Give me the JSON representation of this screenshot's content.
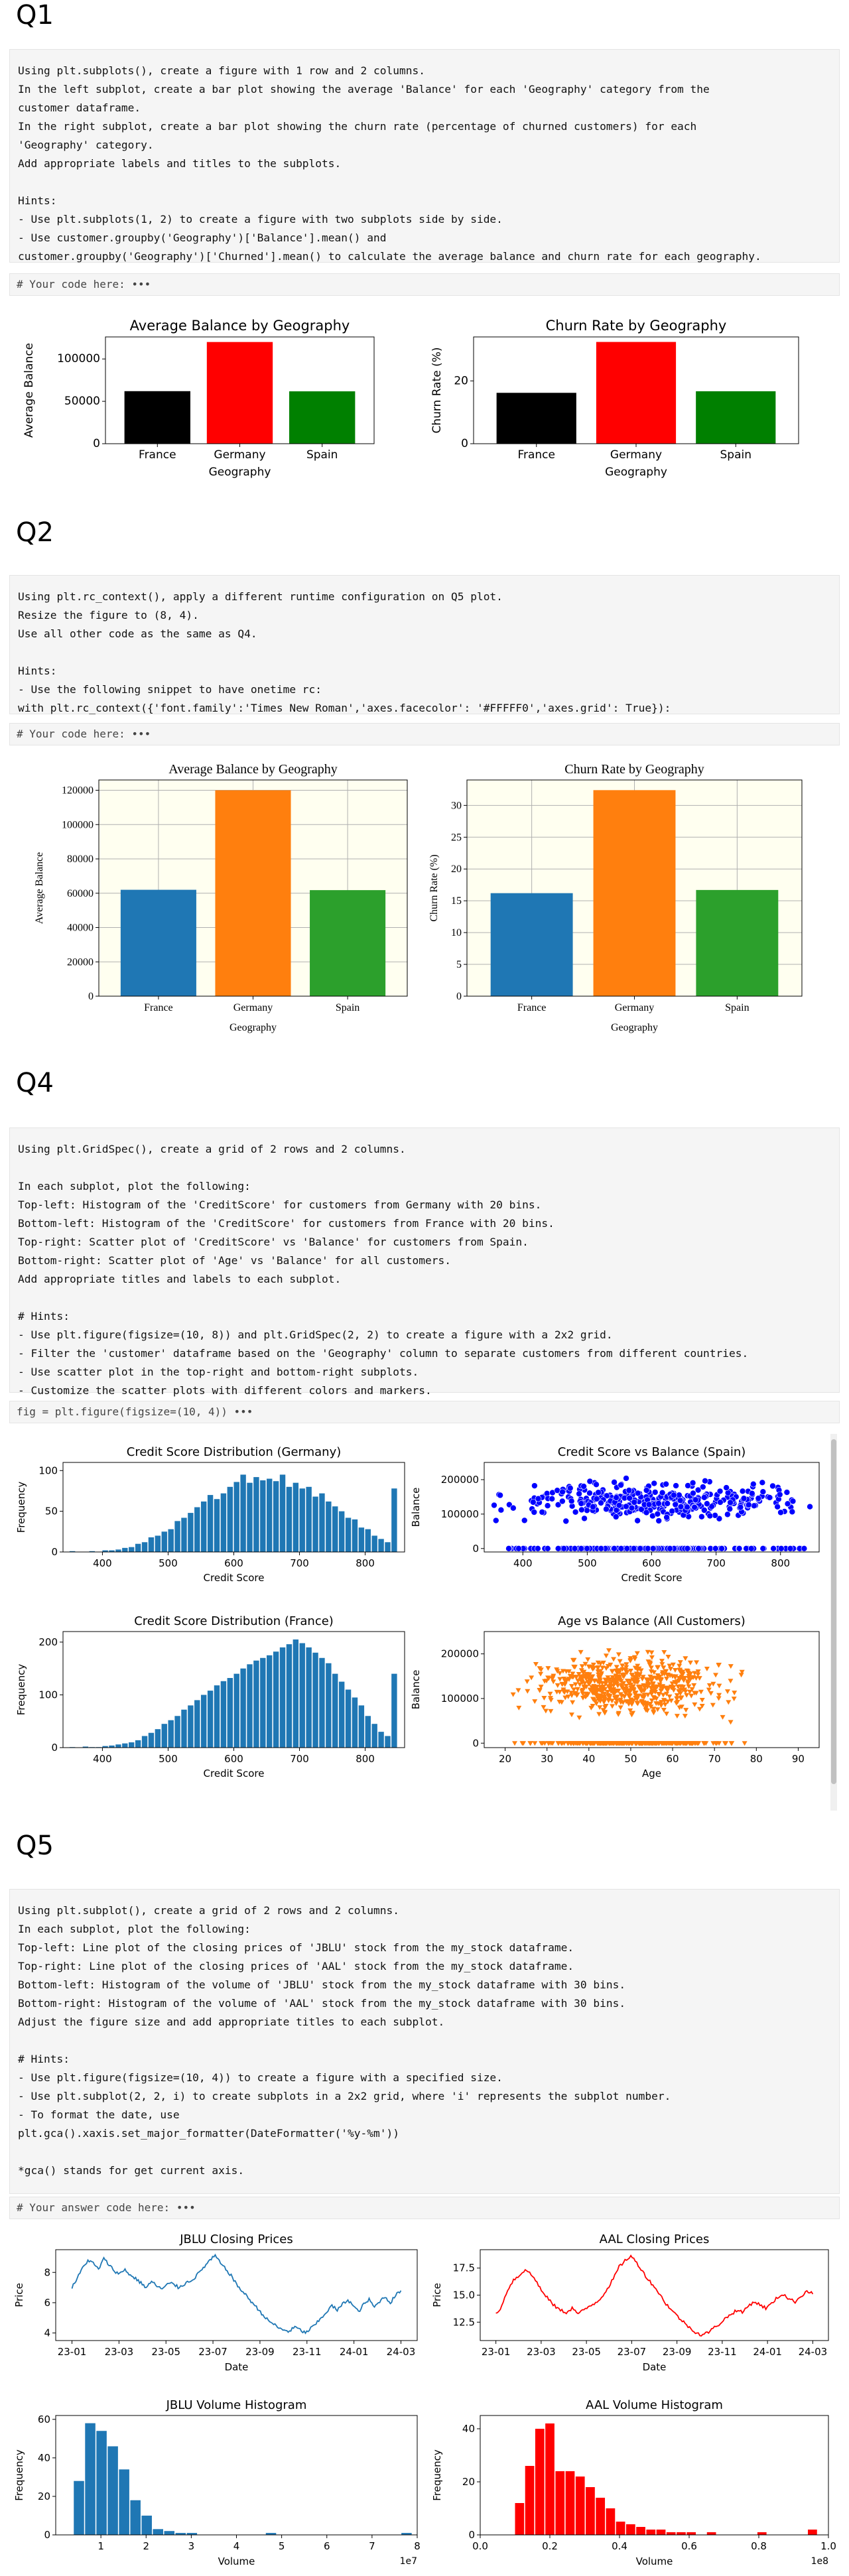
{
  "q1": {
    "heading": "Q1",
    "prompt": "Using plt.subplots(), create a figure with 1 row and 2 columns.\nIn the left subplot, create a bar plot showing the average 'Balance' for each 'Geography' category from the\ncustomer dataframe.\nIn the right subplot, create a bar plot showing the churn rate (percentage of churned customers) for each\n'Geography' category.\nAdd appropriate labels and titles to the subplots.\n\nHints:\n- Use plt.subplots(1, 2) to create a figure with two subplots side by side.\n- Use customer.groupby('Geography')['Balance'].mean() and\ncustomer.groupby('Geography')['Churned'].mean() to calculate the average balance and churn rate for each geography.",
    "code": "# Your code here: •••"
  },
  "q2": {
    "heading": "Q2",
    "prompt": "Using plt.rc_context(), apply a different runtime configuration on Q5 plot.\nResize the figure to (8, 4).\nUse all other code as the same as Q4.\n\nHints:\n- Use the following snippet to have onetime rc:\nwith plt.rc_context({'font.family':'Times New Roman','axes.facecolor': '#FFFFF0','axes.grid': True}):",
    "code": "# Your code here: •••"
  },
  "q4": {
    "heading": "Q4",
    "prompt": "Using plt.GridSpec(), create a grid of 2 rows and 2 columns.\n\nIn each subplot, plot the following:\nTop-left: Histogram of the 'CreditScore' for customers from Germany with 20 bins.\nBottom-left: Histogram of the 'CreditScore' for customers from France with 20 bins.\nTop-right: Scatter plot of 'CreditScore' vs 'Balance' for customers from Spain.\nBottom-right: Scatter plot of 'Age' vs 'Balance' for all customers.\nAdd appropriate titles and labels to each subplot.\n\n# Hints:\n- Use plt.figure(figsize=(10, 8)) and plt.GridSpec(2, 2) to create a figure with a 2x2 grid.\n- Filter the 'customer' dataframe based on the 'Geography' column to separate customers from different countries.\n- Use scatter plot in the top-right and bottom-right subplots.\n- Customize the scatter plots with different colors and markers.",
    "code": "fig = plt.figure(figsize=(10, 4)) •••"
  },
  "q5": {
    "heading": "Q5",
    "prompt": "Using plt.subplot(), create a grid of 2 rows and 2 columns.\nIn each subplot, plot the following:\nTop-left: Line plot of the closing prices of 'JBLU' stock from the my_stock dataframe.\nTop-right: Line plot of the closing prices of 'AAL' stock from the my_stock dataframe.\nBottom-left: Histogram of the volume of 'JBLU' stock from the my_stock dataframe with 30 bins.\nBottom-right: Histogram of the volume of 'AAL' stock from the my_stock dataframe with 30 bins.\nAdjust the figure size and add appropriate titles to each subplot.\n\n# Hints:\n- Use plt.figure(figsize=(10, 4)) to create a figure with a specified size.\n- Use plt.subplot(2, 2, i) to create subplots in a 2x2 grid, where 'i' represents the subplot number.\n- To format the date, use\nplt.gca().xaxis.set_major_formatter(DateFormatter('%y-%m'))\n\n*gca() stands for get current axis.",
    "code": "# Your answer code here: •••"
  },
  "colors": {
    "black": "#000000",
    "red": "#ff0000",
    "green": "#008000",
    "mpl_blue": "#1f77b4",
    "mpl_orange": "#ff7f0e",
    "mpl_green": "#2ca02c",
    "scatter_blue": "#0000ff",
    "ivory": "#fffff0"
  },
  "chart_data": [
    {
      "id": "q1_balance",
      "type": "bar",
      "title": "Average Balance by Geography",
      "xlabel": "Geography",
      "ylabel": "Average Balance",
      "categories": [
        "France",
        "Germany",
        "Spain"
      ],
      "values": [
        62000,
        120000,
        61800
      ],
      "ylim": [
        0,
        126000
      ],
      "yticks": [
        0,
        50000,
        100000
      ],
      "ytick_labels": [
        "0",
        "50000",
        "100000"
      ],
      "colors": [
        "#000000",
        "#ff0000",
        "#008000"
      ]
    },
    {
      "id": "q1_churn",
      "type": "bar",
      "title": "Churn Rate by Geography",
      "xlabel": "Geography",
      "ylabel": "Churn Rate (%)",
      "categories": [
        "France",
        "Germany",
        "Spain"
      ],
      "values": [
        16.2,
        32.4,
        16.7
      ],
      "ylim": [
        0,
        34
      ],
      "yticks": [
        0,
        20
      ],
      "ytick_labels": [
        "0",
        "20"
      ],
      "colors": [
        "#000000",
        "#ff0000",
        "#008000"
      ]
    },
    {
      "id": "q2_balance",
      "type": "bar",
      "title": "Average Balance by Geography",
      "xlabel": "Geography",
      "ylabel": "Average Balance",
      "categories": [
        "France",
        "Germany",
        "Spain"
      ],
      "values": [
        62000,
        120000,
        61800
      ],
      "ylim": [
        0,
        126000
      ],
      "yticks": [
        0,
        20000,
        40000,
        60000,
        80000,
        100000,
        120000
      ],
      "ytick_labels": [
        "0",
        "20000",
        "40000",
        "60000",
        "80000",
        "100000",
        "120000"
      ],
      "colors": [
        "#1f77b4",
        "#ff7f0e",
        "#2ca02c"
      ],
      "grid": true,
      "facecolor": "#fffff0"
    },
    {
      "id": "q2_churn",
      "type": "bar",
      "title": "Churn Rate by Geography",
      "xlabel": "Geography",
      "ylabel": "Churn Rate (%)",
      "categories": [
        "France",
        "Germany",
        "Spain"
      ],
      "values": [
        16.2,
        32.4,
        16.7
      ],
      "ylim": [
        0,
        34
      ],
      "yticks": [
        0,
        5,
        10,
        15,
        20,
        25,
        30
      ],
      "ytick_labels": [
        "0",
        "5",
        "10",
        "15",
        "20",
        "25",
        "30"
      ],
      "colors": [
        "#1f77b4",
        "#ff7f0e",
        "#2ca02c"
      ],
      "grid": true,
      "facecolor": "#fffff0"
    },
    {
      "id": "q4_germany",
      "type": "bar",
      "title": "Credit Score Distribution (Germany)",
      "xlabel": "Credit Score",
      "ylabel": "Frequency",
      "x": [
        355,
        365,
        375,
        385,
        395,
        405,
        415,
        425,
        435,
        445,
        455,
        465,
        475,
        485,
        495,
        505,
        515,
        525,
        535,
        545,
        555,
        565,
        575,
        585,
        595,
        605,
        615,
        625,
        635,
        645,
        655,
        665,
        675,
        685,
        695,
        705,
        715,
        725,
        735,
        745,
        755,
        765,
        775,
        785,
        795,
        805,
        815,
        825,
        835,
        845
      ],
      "values": [
        1,
        0,
        0,
        1,
        0,
        2,
        2,
        3,
        5,
        6,
        10,
        12,
        18,
        20,
        25,
        28,
        38,
        42,
        48,
        55,
        62,
        70,
        65,
        72,
        80,
        86,
        95,
        85,
        92,
        88,
        90,
        87,
        95,
        80,
        85,
        78,
        80,
        68,
        72,
        62,
        56,
        50,
        42,
        40,
        30,
        28,
        20,
        16,
        12,
        78
      ],
      "xlim": [
        340,
        860
      ],
      "ylim": [
        0,
        110
      ],
      "xticks": [
        400,
        500,
        600,
        700,
        800
      ],
      "yticks": [
        0,
        50,
        100
      ],
      "color": "#1f77b4"
    },
    {
      "id": "q4_spain",
      "type": "scatter",
      "title": "Credit Score vs Balance (Spain)",
      "xlabel": "Credit Score",
      "ylabel": "Balance",
      "xlim": [
        340,
        860
      ],
      "ylim": [
        -10000,
        250000
      ],
      "xticks": [
        400,
        500,
        600,
        700,
        800
      ],
      "yticks": [
        0,
        100000,
        200000
      ],
      "ytick_labels": [
        "0",
        "100000",
        "200000"
      ],
      "color": "#0000ff",
      "marker": "circle",
      "sample_count": 520
    },
    {
      "id": "q4_france",
      "type": "bar",
      "title": "Credit Score Distribution (France)",
      "xlabel": "Credit Score",
      "ylabel": "Frequency",
      "x": [
        355,
        365,
        375,
        385,
        395,
        405,
        415,
        425,
        435,
        445,
        455,
        465,
        475,
        485,
        495,
        505,
        515,
        525,
        535,
        545,
        555,
        565,
        575,
        585,
        595,
        605,
        615,
        625,
        635,
        645,
        655,
        665,
        675,
        685,
        695,
        705,
        715,
        725,
        735,
        745,
        755,
        765,
        775,
        785,
        795,
        805,
        815,
        825,
        835,
        845
      ],
      "values": [
        1,
        0,
        2,
        1,
        1,
        3,
        4,
        6,
        8,
        10,
        14,
        22,
        28,
        35,
        45,
        52,
        60,
        72,
        80,
        90,
        100,
        108,
        118,
        126,
        132,
        140,
        150,
        158,
        165,
        170,
        175,
        182,
        190,
        196,
        205,
        198,
        190,
        180,
        170,
        160,
        140,
        125,
        110,
        95,
        80,
        60,
        45,
        30,
        22,
        140
      ],
      "xlim": [
        340,
        860
      ],
      "ylim": [
        0,
        220
      ],
      "xticks": [
        400,
        500,
        600,
        700,
        800
      ],
      "yticks": [
        0,
        100,
        200
      ],
      "color": "#1f77b4"
    },
    {
      "id": "q4_age",
      "type": "scatter",
      "title": "Age vs Balance (All Customers)",
      "xlabel": "Age",
      "ylabel": "Balance",
      "xlim": [
        15,
        95
      ],
      "ylim": [
        -10000,
        250000
      ],
      "xticks": [
        20,
        30,
        40,
        50,
        60,
        70,
        80,
        90
      ],
      "yticks": [
        0,
        100000,
        200000
      ],
      "ytick_labels": [
        "0",
        "100000",
        "200000"
      ],
      "color": "#ff7f0e",
      "marker": "triangle",
      "sample_count": 900
    },
    {
      "id": "q5_jblu",
      "type": "line",
      "title": "JBLU Closing Prices",
      "xlabel": "Date",
      "ylabel": "Price",
      "xtick_labels": [
        "23-01",
        "23-03",
        "23-05",
        "23-07",
        "23-09",
        "23-11",
        "24-01",
        "24-03"
      ],
      "values": [
        7.0,
        7.6,
        8.3,
        8.8,
        8.6,
        8.2,
        8.9,
        8.5,
        8.1,
        7.9,
        8.2,
        7.8,
        7.6,
        7.3,
        7.0,
        7.4,
        7.1,
        6.9,
        7.2,
        7.3,
        7.0,
        7.2,
        7.4,
        7.6,
        8.0,
        8.4,
        8.8,
        9.1,
        8.6,
        8.2,
        7.8,
        7.2,
        6.8,
        6.4,
        6.0,
        5.6,
        5.2,
        4.8,
        4.6,
        4.3,
        4.2,
        4.1,
        4.4,
        4.2,
        4.0,
        4.3,
        4.6,
        5.0,
        5.4,
        5.8,
        5.5,
        5.9,
        6.2,
        5.8,
        5.4,
        5.9,
        6.2,
        5.7,
        6.1,
        6.4,
        6.0,
        6.5,
        6.8
      ],
      "ylim": [
        3.5,
        9.5
      ],
      "yticks": [
        4,
        6,
        8
      ],
      "color": "#1f77b4"
    },
    {
      "id": "q5_aal",
      "type": "line",
      "title": "AAL Closing Prices",
      "xlabel": "Date",
      "ylabel": "Price",
      "xtick_labels": [
        "23-01",
        "23-03",
        "23-05",
        "23-07",
        "23-09",
        "23-11",
        "24-01",
        "24-03"
      ],
      "values": [
        13.2,
        14.0,
        15.5,
        16.4,
        16.8,
        17.4,
        16.9,
        16.2,
        15.2,
        14.6,
        14.0,
        13.6,
        13.4,
        13.8,
        13.3,
        13.6,
        14.0,
        14.3,
        14.8,
        15.6,
        16.5,
        17.6,
        18.2,
        18.6,
        18.0,
        17.2,
        16.4,
        15.8,
        15.0,
        14.2,
        13.6,
        13.0,
        12.5,
        12.0,
        11.6,
        11.3,
        11.5,
        11.9,
        12.3,
        12.8,
        13.2,
        13.6,
        13.4,
        14.0,
        14.4,
        14.1,
        13.8,
        14.2,
        14.8,
        15.1,
        14.6,
        14.4,
        14.9,
        15.4,
        15.1
      ],
      "ylim": [
        10.8,
        19.2
      ],
      "yticks": [
        12.5,
        15.0,
        17.5
      ],
      "ytick_labels": [
        "12.5",
        "15.0",
        "17.5"
      ],
      "color": "#ff0000"
    },
    {
      "id": "q5_jblu_vol",
      "type": "bar",
      "title": "JBLU Volume Histogram",
      "xlabel": "Volume",
      "ylabel": "Frequency",
      "values": [
        28,
        58,
        54,
        46,
        34,
        18,
        10,
        3,
        2,
        1,
        1,
        0,
        0,
        0,
        0,
        0,
        0,
        1,
        0,
        0,
        0,
        0,
        0,
        0,
        0,
        0,
        0,
        0,
        0,
        1
      ],
      "xlim": [
        0,
        80000000
      ],
      "bin_start": 4000000,
      "bin_width": 2500000,
      "ylim": [
        0,
        62
      ],
      "yticks": [
        0,
        20,
        40,
        60
      ],
      "xticks": [
        10000000,
        20000000,
        30000000,
        40000000,
        50000000,
        60000000,
        70000000,
        80000000
      ],
      "xtick_labels": [
        "1",
        "2",
        "3",
        "4",
        "5",
        "6",
        "7",
        "8"
      ],
      "offset_label": "1e7",
      "color": "#1f77b4"
    },
    {
      "id": "q5_aal_vol",
      "type": "bar",
      "title": "AAL Volume Histogram",
      "xlabel": "Volume",
      "ylabel": "Frequency",
      "values": [
        12,
        26,
        40,
        42,
        24,
        24,
        22,
        18,
        14,
        10,
        5,
        4,
        3,
        2,
        2,
        1,
        1,
        1,
        0,
        1,
        0,
        0,
        0,
        0,
        1,
        0,
        0,
        0,
        0,
        2
      ],
      "xlim": [
        0,
        100000000
      ],
      "bin_start": 10000000,
      "bin_width": 2900000,
      "ylim": [
        0,
        45
      ],
      "yticks": [
        0,
        20,
        40
      ],
      "xticks": [
        0,
        20000000,
        40000000,
        60000000,
        80000000,
        100000000
      ],
      "xtick_labels": [
        "0.0",
        "0.2",
        "0.4",
        "0.6",
        "0.8",
        "1.0"
      ],
      "offset_label": "1e8",
      "color": "#ff0000"
    }
  ]
}
